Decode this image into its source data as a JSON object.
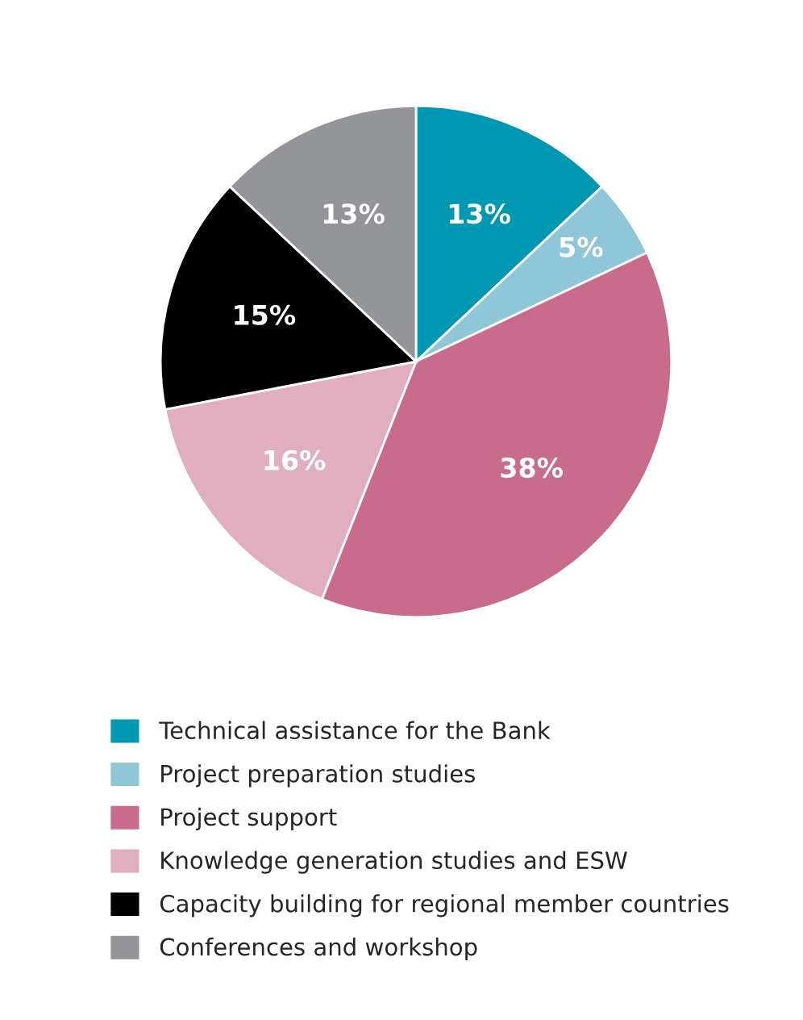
{
  "chart_data": {
    "type": "pie",
    "categories": [
      "Technical assistance for the Bank",
      "Project preparation studies",
      "Project support",
      "Knowledge generation studies and ESW",
      "Capacity building for regional member countries",
      "Conferences and workshop"
    ],
    "values": [
      13,
      5,
      38,
      16,
      15,
      13
    ],
    "colors": [
      "#0098b3",
      "#8fc7d8",
      "#c96b8c",
      "#e0aebf",
      "#000000",
      "#939598"
    ],
    "value_labels": [
      "13%",
      "5%",
      "38%",
      "16%",
      "15%",
      "13%"
    ],
    "legend": "bottom"
  }
}
